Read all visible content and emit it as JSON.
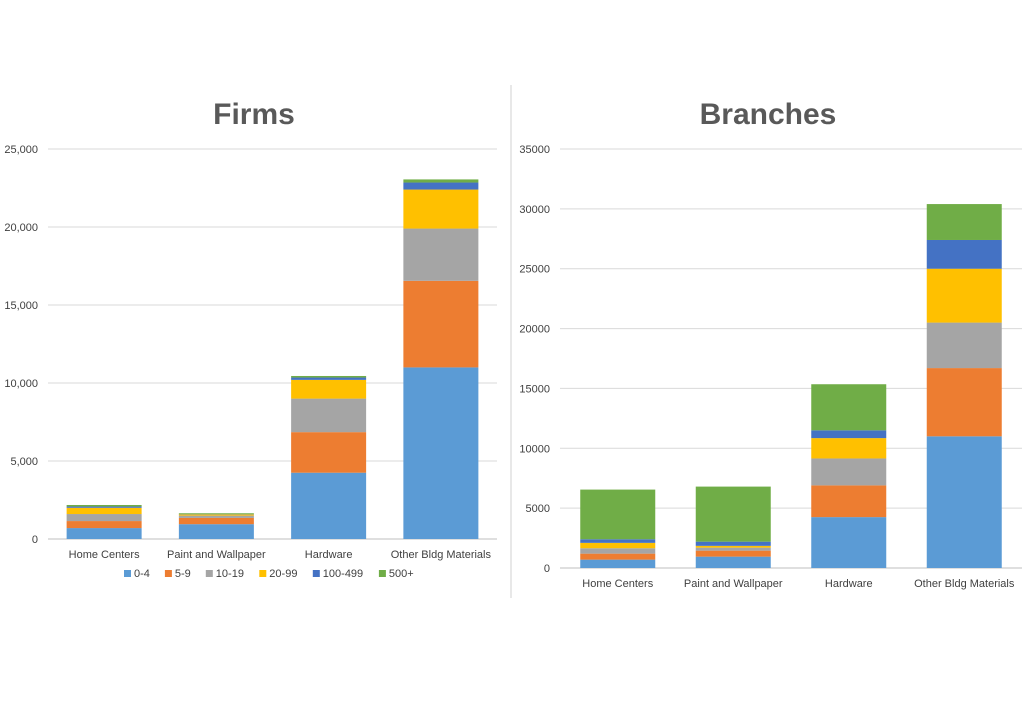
{
  "chart_data": [
    {
      "type": "bar",
      "stacked": true,
      "title": "Firms",
      "categories": [
        "Home Centers",
        "Paint and Wallpaper",
        "Hardware",
        "Other Bldg Materials"
      ],
      "ylim": [
        0,
        25000
      ],
      "yticks": [
        0,
        5000,
        10000,
        15000,
        20000,
        25000
      ],
      "ytick_labels": [
        "0",
        "5,000",
        "10,000",
        "15,000",
        "20,000",
        "25,000"
      ],
      "grid": true,
      "legend": "bottom",
      "series": [
        {
          "name": "0-4",
          "color": "#5b9bd5",
          "values": [
            700,
            950,
            4250,
            11000
          ]
        },
        {
          "name": "5-9",
          "color": "#ed7d31",
          "values": [
            450,
            400,
            2600,
            5550
          ]
        },
        {
          "name": "10-19",
          "color": "#a5a5a5",
          "values": [
            450,
            150,
            2150,
            3350
          ]
        },
        {
          "name": "20-99",
          "color": "#ffc000",
          "values": [
            400,
            70,
            1200,
            2500
          ]
        },
        {
          "name": "100-499",
          "color": "#4472c4",
          "values": [
            80,
            20,
            150,
            450
          ]
        },
        {
          "name": "500+",
          "color": "#70ad47",
          "values": [
            100,
            60,
            100,
            200
          ]
        }
      ]
    },
    {
      "type": "bar",
      "stacked": true,
      "title": "Branches",
      "categories": [
        "Home Centers",
        "Paint and Wallpaper",
        "Hardware",
        "Other Bldg Materials"
      ],
      "ylim": [
        0,
        35000
      ],
      "yticks": [
        0,
        5000,
        10000,
        15000,
        20000,
        25000,
        30000,
        35000
      ],
      "ytick_labels": [
        "0",
        "5000",
        "10000",
        "15000",
        "20000",
        "25000",
        "30000",
        "35000"
      ],
      "grid": true,
      "legend": "none",
      "series": [
        {
          "name": "0-4",
          "color": "#5b9bd5",
          "values": [
            700,
            950,
            4250,
            11000
          ]
        },
        {
          "name": "5-9",
          "color": "#ed7d31",
          "values": [
            500,
            500,
            2650,
            5700
          ]
        },
        {
          "name": "10-19",
          "color": "#a5a5a5",
          "values": [
            450,
            250,
            2250,
            3800
          ]
        },
        {
          "name": "20-99",
          "color": "#ffc000",
          "values": [
            450,
            150,
            1700,
            4500
          ]
        },
        {
          "name": "100-499",
          "color": "#4472c4",
          "values": [
            300,
            350,
            650,
            2400
          ]
        },
        {
          "name": "500+",
          "color": "#70ad47",
          "values": [
            4150,
            4600,
            3850,
            3000
          ]
        }
      ]
    }
  ]
}
